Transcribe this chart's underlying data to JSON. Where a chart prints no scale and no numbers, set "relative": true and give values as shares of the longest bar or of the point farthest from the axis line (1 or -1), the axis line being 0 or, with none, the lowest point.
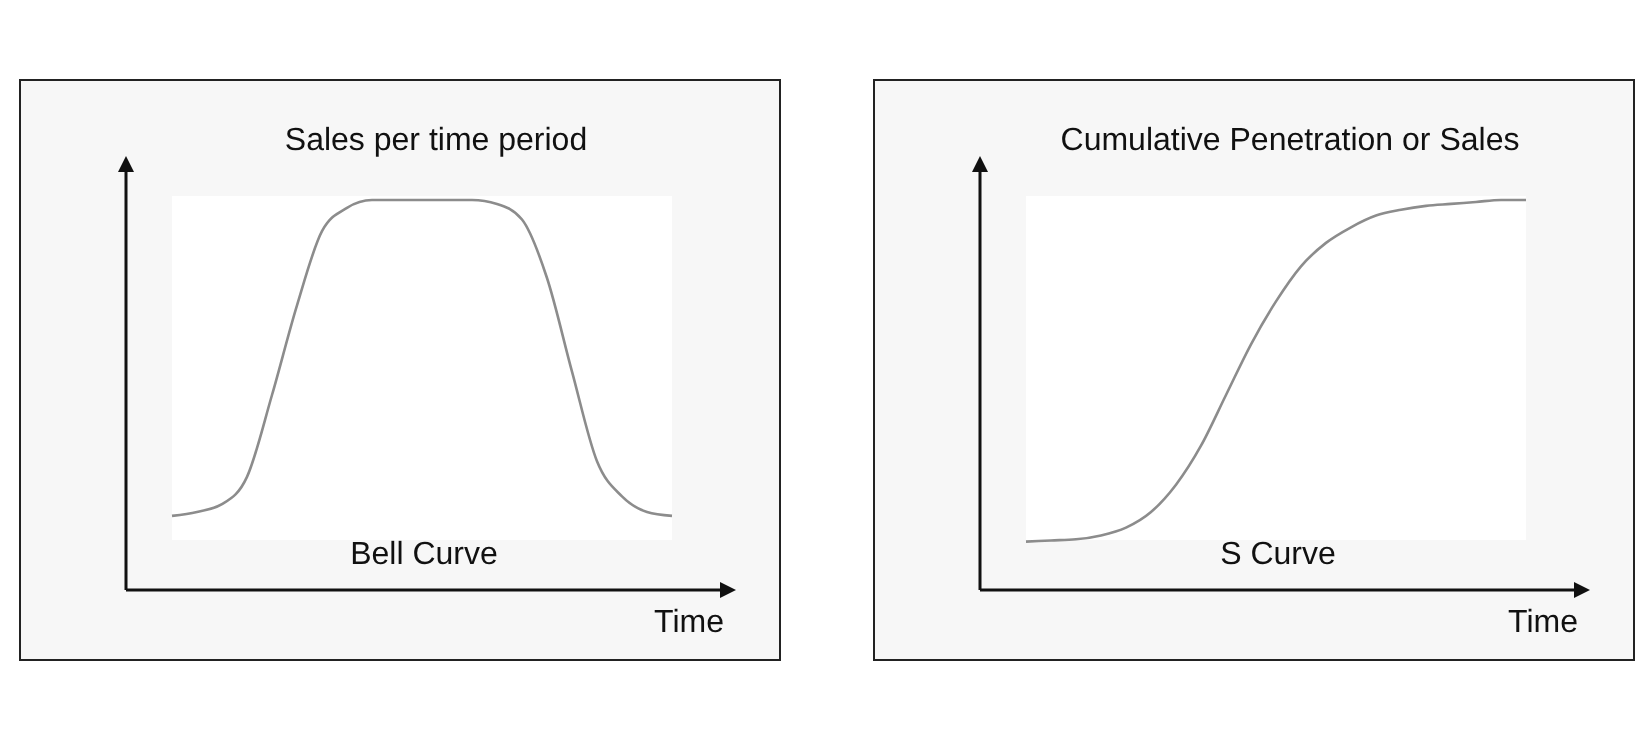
{
  "chart_data": [
    {
      "type": "line",
      "title": "Sales per time period",
      "xlabel": "Time",
      "annotations": [
        "Bell Curve"
      ],
      "relative": true,
      "categories": [
        null,
        null,
        null,
        null,
        null,
        null,
        null,
        null,
        null,
        null,
        null,
        null,
        null,
        null,
        null,
        null,
        null,
        null,
        null,
        null,
        null
      ],
      "series": [
        {
          "color": "#8c8c8c",
          "values": [
            0.19,
            0.2,
            0.22,
            0.29,
            0.5,
            0.73,
            0.92,
            0.98,
            1,
            1,
            1,
            1,
            1,
            0.99,
            0.95,
            0.8,
            0.56,
            0.33,
            0.24,
            0.2,
            0.19
          ]
        }
      ]
    },
    {
      "type": "line",
      "title": "Cumulative Penetration or Sales",
      "xlabel": "Time",
      "annotations": [
        "S Curve"
      ],
      "relative": true,
      "categories": [
        null,
        null,
        null,
        null,
        null,
        null,
        null,
        null,
        null,
        null,
        null,
        null,
        null,
        null,
        null,
        null,
        null,
        null,
        null,
        null,
        null
      ],
      "series": [
        {
          "color": "#8c8c8c",
          "values": [
            0.124,
            0.127,
            0.13,
            0.14,
            0.16,
            0.2,
            0.27,
            0.37,
            0.5,
            0.63,
            0.74,
            0.83,
            0.89,
            0.93,
            0.96,
            0.975,
            0.985,
            0.99,
            0.995,
            1,
            1
          ]
        }
      ]
    }
  ]
}
